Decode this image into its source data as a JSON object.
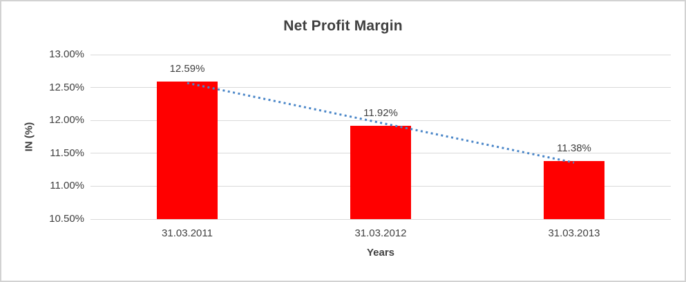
{
  "window": {
    "background_color": "#ffffff",
    "border_color": "#d2d2d2"
  },
  "chart_data": {
    "type": "bar",
    "title": "Net Profit Margin",
    "xlabel": "Years",
    "ylabel": "IN (%)",
    "categories": [
      "31.03.2011",
      "31.03.2012",
      "31.03.2013"
    ],
    "values": [
      12.59,
      11.92,
      11.38
    ],
    "data_labels": [
      "12.59%",
      "11.92%",
      "11.38%"
    ],
    "y_ticks": [
      {
        "value": 13.0,
        "label": "13.00%"
      },
      {
        "value": 12.5,
        "label": "12.50%"
      },
      {
        "value": 12.0,
        "label": "12.00%"
      },
      {
        "value": 11.5,
        "label": "11.50%"
      },
      {
        "value": 11.0,
        "label": "11.00%"
      },
      {
        "value": 10.5,
        "label": "10.50%"
      }
    ],
    "ylim": [
      10.5,
      13.0
    ],
    "grid": "horizontal",
    "legend": "none",
    "bar_color": "#ff0000",
    "gridline_color": "#d9d9d9",
    "text_color": "#404040",
    "trendline": {
      "type": "linear",
      "style": "dotted",
      "color": "#4a86c8"
    }
  }
}
